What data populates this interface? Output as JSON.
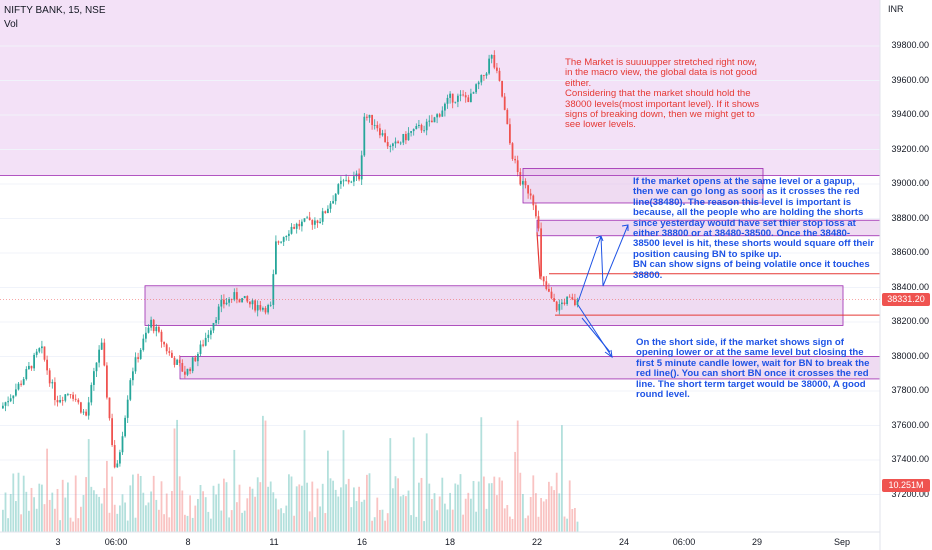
{
  "header": {
    "symbol": "NIFTY BANK, 15, NSE",
    "volume_label": "Vol"
  },
  "currency": "INR",
  "price_axis": [
    "39800.00",
    "39600.00",
    "39400.00",
    "39200.00",
    "39000.00",
    "38800.00",
    "38600.00",
    "38400.00",
    "38200.00",
    "38000.00",
    "37800.00",
    "37600.00",
    "37400.00",
    "37200.00"
  ],
  "date_axis": [
    "3",
    "06:00",
    "8",
    "11",
    "16",
    "18",
    "22",
    "24",
    "06:00",
    "29",
    "Sep"
  ],
  "last_price_tag": "38331.20",
  "volume_tag": "10.251M",
  "colors": {
    "up": "#26a69a",
    "down": "#ef5350",
    "zone": "#e1bee7",
    "zone_border": "#9c27b0",
    "note_blue": "#1e53e5",
    "note_red": "#e53935"
  },
  "notes": {
    "macro": "The Market is suuuupper stretched right now, in the macro view, the global data is not good either.\nConsidering that the market should hold the 38000 levels(most important level). If it shows signs of breaking down, then we might get to see lower levels.",
    "long_side": "If the market opens at the same level or a gapup, then we can go long as soon as it crosses the red line(38480). The reason this level is important is because, all the people who are holding the shorts since yesterday would have set thier stop loss at either 38800 or at 38480-38500. Once the 38480-38500 level is hit, these shorts would square off their position causing BN to spike up.\nBN can show signs of being volatile once it touches 38800.",
    "short_side": "On the short side, if the market shows sign of opening lower or at the same level but closing the first 5 minute candle lower, wait for BN to break the red line(). You can short BN once it crosses the red line. The short term target would be 38000, A good round level."
  },
  "chart_data": {
    "type": "candlestick",
    "y_range": [
      37100,
      40000
    ],
    "price_levels": {
      "resistance_upper": 39050,
      "red_line_long": 38480,
      "red_line_short": 38240,
      "last_price": 38331.2
    },
    "zones": [
      {
        "low": 38180,
        "high": 38410
      },
      {
        "low": 37870,
        "high": 38000
      },
      {
        "low": 38890,
        "high": 39090
      },
      {
        "low": 38700,
        "high": 38790
      }
    ],
    "path": [
      [
        0,
        37700
      ],
      [
        20,
        37850
      ],
      [
        40,
        38050
      ],
      [
        55,
        37750
      ],
      [
        70,
        37800
      ],
      [
        85,
        37650
      ],
      [
        100,
        38100
      ],
      [
        115,
        37300
      ],
      [
        130,
        37900
      ],
      [
        150,
        38200
      ],
      [
        170,
        38000
      ],
      [
        185,
        37900
      ],
      [
        200,
        38050
      ],
      [
        220,
        38300
      ],
      [
        235,
        38350
      ],
      [
        250,
        38300
      ],
      [
        270,
        38280
      ],
      [
        275,
        38650
      ],
      [
        290,
        38750
      ],
      [
        320,
        38800
      ],
      [
        340,
        39000
      ],
      [
        360,
        39050
      ],
      [
        362,
        39400
      ],
      [
        375,
        39350
      ],
      [
        390,
        39200
      ],
      [
        410,
        39300
      ],
      [
        430,
        39350
      ],
      [
        450,
        39500
      ],
      [
        470,
        39500
      ],
      [
        485,
        39650
      ],
      [
        490,
        39750
      ],
      [
        500,
        39550
      ],
      [
        510,
        39200
      ],
      [
        520,
        39000
      ],
      [
        530,
        38950
      ],
      [
        537,
        38800
      ],
      [
        540,
        38450
      ],
      [
        555,
        38280
      ],
      [
        565,
        38330
      ],
      [
        578,
        38300
      ]
    ]
  }
}
